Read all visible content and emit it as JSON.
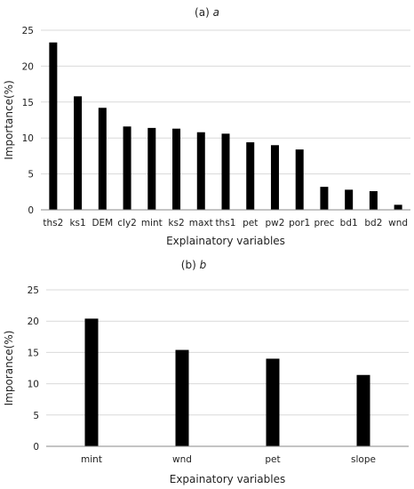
{
  "chart_data": [
    {
      "type": "bar",
      "panel_label": "(a)",
      "title_italic": "a",
      "xlabel": "Explainatory variables",
      "ylabel": "Importance(%)",
      "ylim": [
        0,
        25
      ],
      "yticks": [
        0,
        5,
        10,
        15,
        20,
        25
      ],
      "grid": true,
      "categories": [
        "ths2",
        "ks1",
        "DEM",
        "cly2",
        "mint",
        "ks2",
        "maxt",
        "ths1",
        "pet",
        "pw2",
        "por1",
        "prec",
        "bd1",
        "bd2",
        "wnd"
      ],
      "values": [
        23.3,
        15.8,
        14.2,
        11.6,
        11.4,
        11.3,
        10.8,
        10.6,
        9.4,
        9.0,
        8.4,
        3.2,
        2.8,
        2.6,
        0.7
      ],
      "bar_color": "#000000"
    },
    {
      "type": "bar",
      "panel_label": "(b)",
      "title_italic": "b",
      "xlabel": "Expainatory variables",
      "ylabel": "Imporance(%)",
      "ylim": [
        0,
        25
      ],
      "yticks": [
        0,
        5,
        10,
        15,
        20,
        25
      ],
      "grid": true,
      "categories": [
        "mint",
        "wnd",
        "pet",
        "slope"
      ],
      "values": [
        20.4,
        15.4,
        14.0,
        11.4
      ],
      "bar_color": "#000000"
    }
  ]
}
